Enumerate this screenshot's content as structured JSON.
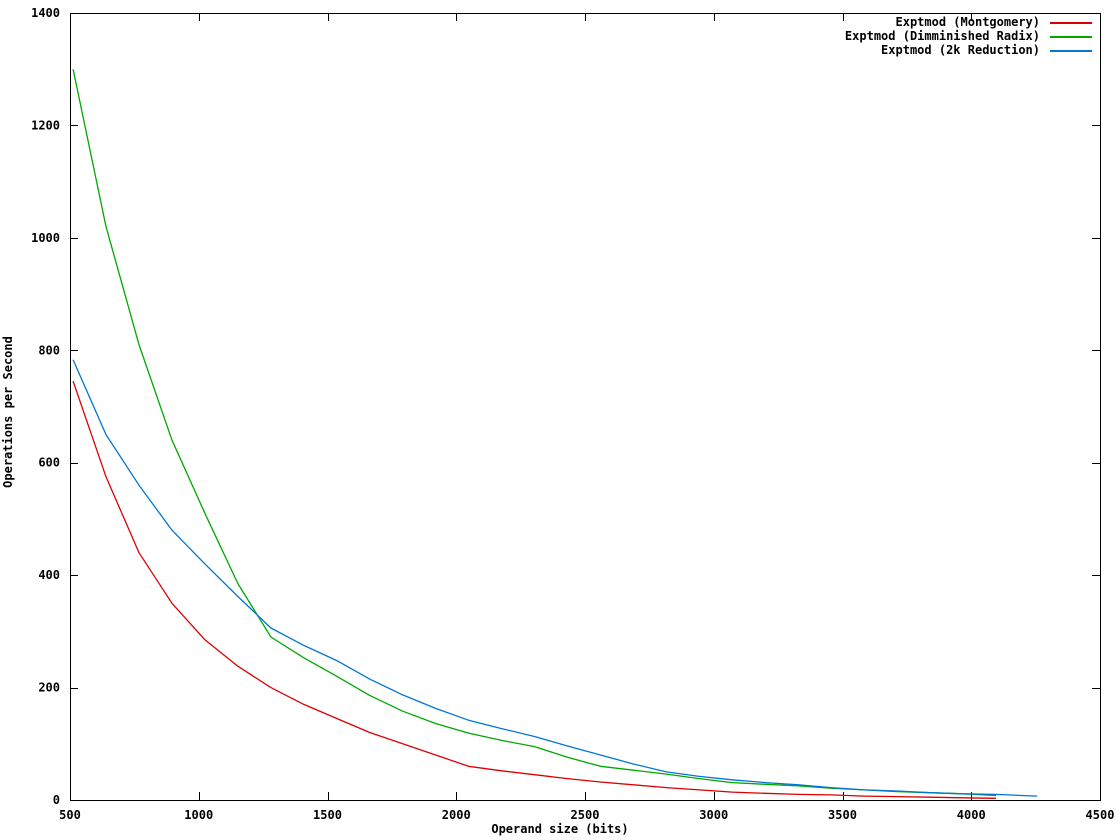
{
  "figure": {
    "background": "#ffffff",
    "axis_color": "#000000"
  },
  "chart_data": {
    "type": "line",
    "title": "",
    "xlabel": "Operand size (bits)",
    "ylabel": "Operations per Second",
    "xlim": [
      500,
      4500
    ],
    "ylim": [
      0,
      1400
    ],
    "xticks": [
      500,
      1000,
      1500,
      2000,
      2500,
      3000,
      3500,
      4000,
      4500
    ],
    "yticks": [
      0,
      200,
      400,
      600,
      800,
      1000,
      1200,
      1400
    ],
    "grid": false,
    "legend_position": "top-right-inside",
    "series": [
      {
        "name": "Exptmod (Montgomery)",
        "color": "#dd0000",
        "x": [
          512,
          640,
          768,
          896,
          1024,
          1152,
          1280,
          1408,
          1536,
          1664,
          1792,
          1920,
          2048,
          2176,
          2304,
          2432,
          2560,
          2688,
          2816,
          2944,
          3072,
          3200,
          3328,
          3456,
          3584,
          3712,
          3840,
          3968,
          4096
        ],
        "values": [
          745,
          575,
          440,
          350,
          285,
          238,
          200,
          170,
          145,
          120,
          100,
          80,
          60,
          52,
          45,
          38,
          32,
          27,
          22,
          18,
          14,
          12,
          10,
          9,
          7,
          6,
          5,
          4,
          3
        ]
      },
      {
        "name": "Exptmod (Dimminished Radix)",
        "color": "#00a800",
        "x": [
          512,
          640,
          768,
          896,
          1024,
          1152,
          1280,
          1408,
          1536,
          1664,
          1792,
          1920,
          2048,
          2176,
          2304,
          2432,
          2560,
          2688,
          2816,
          2944,
          3072,
          3200,
          3328,
          3456,
          3584,
          3712,
          3840,
          3968,
          4096
        ],
        "values": [
          1300,
          1020,
          810,
          640,
          510,
          385,
          290,
          253,
          220,
          186,
          158,
          136,
          119,
          106,
          95,
          76,
          60,
          53,
          46,
          38,
          31,
          28,
          25,
          21,
          18,
          15,
          13,
          11,
          8
        ]
      },
      {
        "name": "Exptmod (2k Reduction)",
        "color": "#0076d6",
        "x": [
          512,
          640,
          768,
          896,
          1024,
          1152,
          1280,
          1408,
          1536,
          1664,
          1792,
          1920,
          2048,
          2176,
          2304,
          2432,
          2560,
          2688,
          2816,
          2944,
          3072,
          3200,
          3328,
          3456,
          3584,
          3712,
          3840,
          3968,
          4096,
          4256
        ],
        "values": [
          783,
          650,
          560,
          480,
          420,
          362,
          306,
          275,
          248,
          215,
          187,
          163,
          142,
          127,
          113,
          96,
          80,
          64,
          50,
          42,
          36,
          31,
          27,
          22,
          18,
          16,
          13,
          11,
          10,
          7
        ]
      }
    ]
  }
}
